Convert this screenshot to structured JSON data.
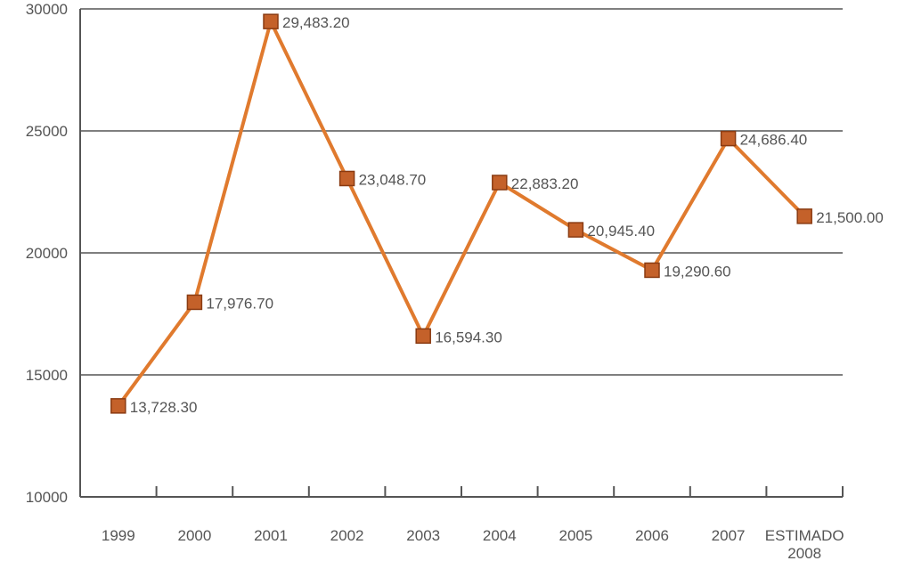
{
  "colors": {
    "line": "#e07a2e",
    "marker_fill": "#c4612a",
    "marker_stroke": "#8a3b12",
    "grid": "#7f7f7f",
    "axis": "#555555",
    "text": "#555555"
  },
  "chart_data": {
    "type": "line",
    "title": "",
    "xlabel": "",
    "ylabel": "",
    "ylim": [
      10000,
      30000
    ],
    "yticks": [
      10000,
      15000,
      20000,
      25000,
      30000
    ],
    "grid": "horizontal",
    "categories": [
      "1999",
      "2000",
      "2001",
      "2002",
      "2003",
      "2004",
      "2005",
      "2006",
      "2007",
      "ESTIMADO 2008"
    ],
    "values": [
      13728.3,
      17976.7,
      29483.2,
      23048.7,
      16594.3,
      22883.2,
      20945.4,
      19290.6,
      24686.4,
      21500.0
    ],
    "data_labels": [
      "13,728.30",
      "17,976.70",
      "29,483.20",
      "23,048.70",
      "16,594.30",
      "22,883.20",
      "20,945.40",
      "19,290.60",
      "24,686.40",
      "21,500.00"
    ]
  }
}
